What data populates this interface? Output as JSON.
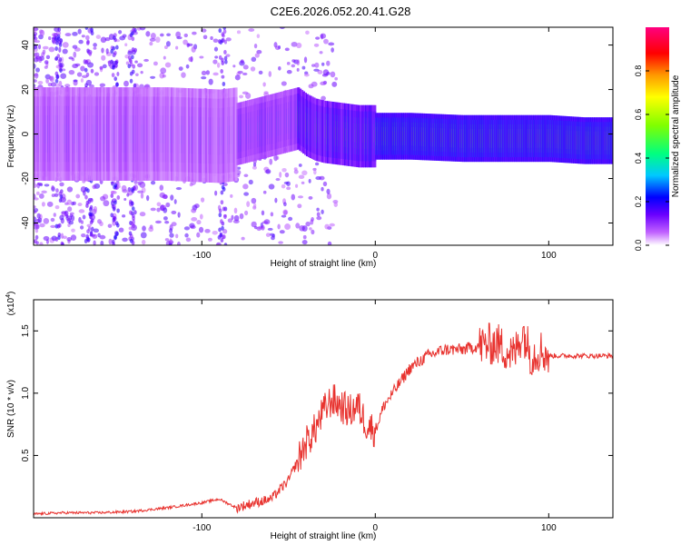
{
  "title": "C2E6.2026.052.20.41.G28",
  "chart_data": [
    {
      "type": "heatmap",
      "xlabel": "Height of straight line (km)",
      "ylabel": "Frequency (Hz)",
      "xlim": [
        -197,
        137
      ],
      "ylim": [
        -50,
        48
      ],
      "xticks": [
        -100,
        0,
        100
      ],
      "yticks": [
        -40,
        -20,
        0,
        20,
        40
      ],
      "colorbar": {
        "label": "Normalized spectral amplitude",
        "range": [
          0,
          1
        ],
        "ticks": [
          0.0,
          0.2,
          0.4,
          0.6,
          0.8
        ]
      },
      "ridge": {
        "description_points": [
          [
            -197,
            0
          ],
          [
            -150,
            0
          ],
          [
            -120,
            0
          ],
          [
            -90,
            -1
          ],
          [
            -80,
            0
          ],
          [
            -70,
            2
          ],
          [
            -60,
            4
          ],
          [
            -50,
            6
          ],
          [
            -45,
            7
          ],
          [
            -40,
            4
          ],
          [
            -35,
            2
          ],
          [
            -30,
            1
          ],
          [
            -20,
            0
          ],
          [
            -10,
            -1
          ],
          [
            0,
            -1
          ],
          [
            20,
            -1
          ],
          [
            50,
            -2
          ],
          [
            80,
            -2
          ],
          [
            100,
            -2
          ],
          [
            120,
            -3
          ],
          [
            137,
            -3
          ]
        ]
      }
    },
    {
      "type": "line",
      "xlabel": "Height of straight line (km)",
      "ylabel": "SNR (10 * v/v)",
      "y_multiplier": "(x10",
      "y_multiplier_exp": "4",
      "y_multiplier_close": ")",
      "xlim": [
        -197,
        137
      ],
      "ylim": [
        0,
        1.75
      ],
      "xticks": [
        -100,
        0,
        100
      ],
      "yticks": [
        0.5,
        1.0,
        1.5
      ],
      "color": "#e8332f",
      "series": [
        {
          "name": "SNR",
          "x": [
            -197,
            -180,
            -160,
            -140,
            -120,
            -100,
            -90,
            -80,
            -70,
            -60,
            -50,
            -45,
            -40,
            -35,
            -30,
            -25,
            -20,
            -15,
            -10,
            -5,
            0,
            5,
            10,
            20,
            30,
            40,
            50,
            60,
            70,
            80,
            85,
            90,
            95,
            100,
            110,
            120,
            137
          ],
          "y": [
            0.03,
            0.04,
            0.04,
            0.05,
            0.08,
            0.12,
            0.15,
            0.08,
            0.12,
            0.15,
            0.3,
            0.45,
            0.6,
            0.7,
            0.85,
            0.95,
            0.9,
            0.85,
            0.9,
            0.75,
            0.7,
            0.9,
            1.0,
            1.2,
            1.3,
            1.35,
            1.35,
            1.38,
            1.4,
            1.3,
            1.5,
            1.3,
            1.35,
            1.3,
            1.3,
            1.3,
            1.3
          ]
        }
      ]
    }
  ]
}
